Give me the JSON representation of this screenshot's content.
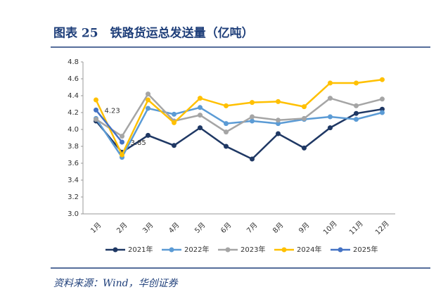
{
  "title": "图表 25　铁路货运总发送量（亿吨）",
  "source": "资料来源：Wind，华创证券",
  "chart_data": {
    "type": "line",
    "categories": [
      "1月",
      "2月",
      "3月",
      "4月",
      "5月",
      "6月",
      "7月",
      "8月",
      "9月",
      "10月",
      "11月",
      "12月"
    ],
    "series": [
      {
        "name": "2021年",
        "color": "#1f3864",
        "values": [
          4.1,
          3.73,
          3.93,
          3.81,
          4.02,
          3.8,
          3.65,
          3.95,
          3.78,
          4.02,
          4.19,
          4.24
        ]
      },
      {
        "name": "2022年",
        "color": "#5b9bd5",
        "values": [
          4.13,
          3.67,
          4.25,
          4.18,
          4.26,
          4.07,
          4.1,
          4.07,
          4.12,
          4.15,
          4.12,
          4.2
        ]
      },
      {
        "name": "2023年",
        "color": "#a5a5a5",
        "values": [
          4.12,
          3.92,
          4.42,
          4.1,
          4.17,
          3.97,
          4.15,
          4.11,
          4.13,
          4.37,
          4.28,
          4.36
        ]
      },
      {
        "name": "2024年",
        "color": "#ffc000",
        "values": [
          4.35,
          3.7,
          4.35,
          4.08,
          4.37,
          4.28,
          4.32,
          4.33,
          4.27,
          4.55,
          4.55,
          4.59
        ]
      },
      {
        "name": "2025年",
        "color": "#4472c4",
        "labeled": true,
        "values": [
          4.23,
          3.85,
          null,
          null,
          null,
          null,
          null,
          null,
          null,
          null,
          null,
          null
        ]
      }
    ],
    "ylim": [
      3.0,
      4.8
    ],
    "yticks": [
      {
        "value": 3.0,
        "label": "3.0"
      },
      3.2,
      3.4,
      3.6,
      3.8,
      {
        "value": 4.0,
        "label": "4.0"
      },
      4.2,
      4.4,
      4.6,
      4.8
    ],
    "legend": "bottom"
  }
}
